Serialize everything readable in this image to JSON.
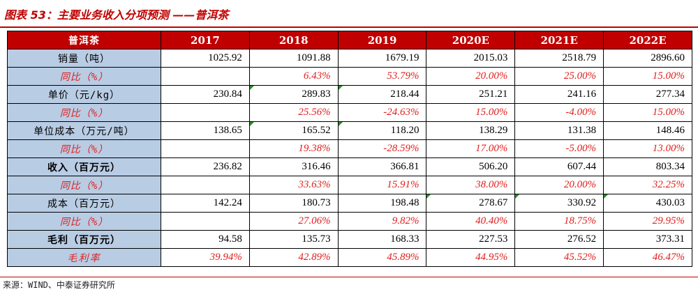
{
  "title": "图表 53：主要业务收入分项预测 ——普洱茶",
  "table": {
    "header": [
      "普洱茶",
      "2017",
      "2018",
      "2019",
      "2020E",
      "2021E",
      "2022E"
    ],
    "rows": [
      {
        "label": "销量（吨）",
        "values": [
          "1025.92",
          "1091.88",
          "1679.19",
          "2015.03",
          "2518.79",
          "2896.60"
        ]
      },
      {
        "label": "同比（%）",
        "values": [
          "",
          "6.43%",
          "53.79%",
          "20.00%",
          "25.00%",
          "15.00%"
        ]
      },
      {
        "label": "单价（元/kg）",
        "values": [
          "230.84",
          "289.83",
          "218.44",
          "251.21",
          "241.16",
          "277.34"
        ]
      },
      {
        "label": "同比（%）",
        "values": [
          "",
          "25.56%",
          "-24.63%",
          "15.00%",
          "-4.00%",
          "15.00%"
        ]
      },
      {
        "label": "单位成本（万元/吨）",
        "values": [
          "138.65",
          "165.52",
          "118.20",
          "138.29",
          "131.38",
          "148.46"
        ]
      },
      {
        "label": "同比（%）",
        "values": [
          "",
          "19.38%",
          "-28.59%",
          "17.00%",
          "-5.00%",
          "13.00%"
        ]
      },
      {
        "label": "收入（百万元）",
        "values": [
          "236.82",
          "316.46",
          "366.81",
          "506.20",
          "607.44",
          "803.34"
        ]
      },
      {
        "label": "同比（%）",
        "values": [
          "",
          "33.63%",
          "15.91%",
          "38.00%",
          "20.00%",
          "32.25%"
        ]
      },
      {
        "label": "成本（百万元）",
        "values": [
          "142.24",
          "180.73",
          "198.48",
          "278.67",
          "330.92",
          "430.03"
        ]
      },
      {
        "label": "同比（%）",
        "values": [
          "",
          "27.06%",
          "9.82%",
          "40.40%",
          "18.75%",
          "29.95%"
        ]
      },
      {
        "label": "毛利（百万元）",
        "values": [
          "94.58",
          "135.73",
          "168.33",
          "227.53",
          "276.52",
          "373.31"
        ]
      },
      {
        "label": "毛利率",
        "values": [
          "39.94%",
          "42.89%",
          "45.89%",
          "44.95%",
          "45.52%",
          "46.47%"
        ]
      }
    ]
  },
  "source": "来源：WIND、中泰证券研究所",
  "colors": {
    "accent": "#c00000",
    "label_bg": "#b8cce4",
    "yoy_text": "#e0201e"
  }
}
